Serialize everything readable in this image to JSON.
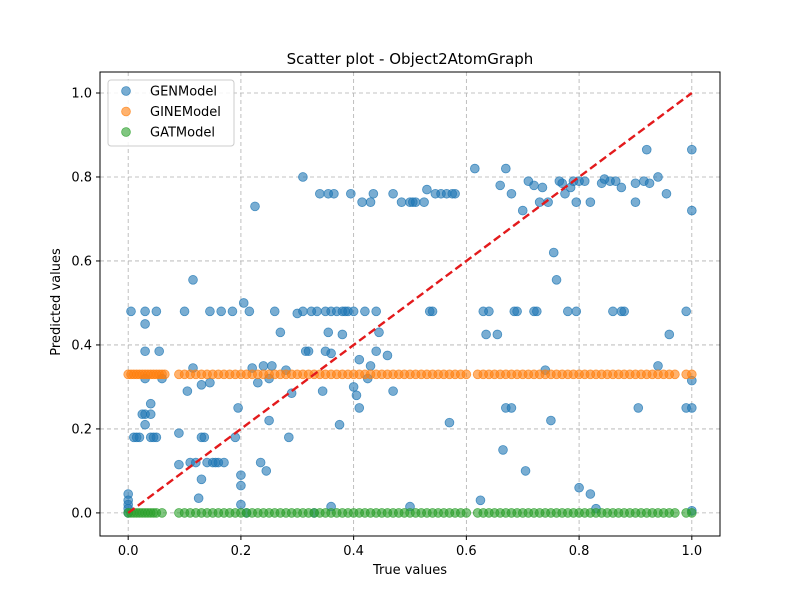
{
  "chart_data": {
    "type": "scatter",
    "title": "Scatter plot - Object2AtomGraph",
    "xlabel": "True values",
    "ylabel": "Predicted values",
    "xlim": [
      -0.05,
      1.05
    ],
    "ylim": [
      -0.055,
      1.05
    ],
    "xticks": [
      "0.0",
      "0.2",
      "0.4",
      "0.6",
      "0.8",
      "1.0"
    ],
    "yticks": [
      "0.0",
      "0.2",
      "0.4",
      "0.6",
      "0.8",
      "1.0"
    ],
    "grid": true,
    "legend_position": "top-left",
    "series": [
      {
        "name": "GENModel",
        "color": "#1f77b4",
        "points": [
          [
            0.0,
            0.0
          ],
          [
            0.0,
            0.01
          ],
          [
            0.0,
            0.02
          ],
          [
            0.0,
            0.03
          ],
          [
            0.0,
            0.045
          ],
          [
            0.005,
            0.48
          ],
          [
            0.01,
            0.18
          ],
          [
            0.015,
            0.18
          ],
          [
            0.02,
            0.18
          ],
          [
            0.025,
            0.235
          ],
          [
            0.03,
            0.21
          ],
          [
            0.03,
            0.235
          ],
          [
            0.03,
            0.32
          ],
          [
            0.03,
            0.385
          ],
          [
            0.03,
            0.45
          ],
          [
            0.03,
            0.48
          ],
          [
            0.04,
            0.235
          ],
          [
            0.04,
            0.26
          ],
          [
            0.04,
            0.18
          ],
          [
            0.045,
            0.18
          ],
          [
            0.05,
            0.18
          ],
          [
            0.05,
            0.48
          ],
          [
            0.055,
            0.385
          ],
          [
            0.06,
            0.32
          ],
          [
            0.09,
            0.19
          ],
          [
            0.09,
            0.115
          ],
          [
            0.1,
            0.48
          ],
          [
            0.105,
            0.29
          ],
          [
            0.11,
            0.12
          ],
          [
            0.115,
            0.555
          ],
          [
            0.115,
            0.345
          ],
          [
            0.12,
            0.12
          ],
          [
            0.125,
            0.035
          ],
          [
            0.13,
            0.08
          ],
          [
            0.13,
            0.18
          ],
          [
            0.13,
            0.305
          ],
          [
            0.135,
            0.18
          ],
          [
            0.14,
            0.12
          ],
          [
            0.145,
            0.31
          ],
          [
            0.145,
            0.48
          ],
          [
            0.15,
            0.12
          ],
          [
            0.155,
            0.12
          ],
          [
            0.16,
            0.12
          ],
          [
            0.165,
            0.48
          ],
          [
            0.17,
            0.12
          ],
          [
            0.185,
            0.48
          ],
          [
            0.19,
            0.18
          ],
          [
            0.195,
            0.25
          ],
          [
            0.2,
            0.09
          ],
          [
            0.2,
            0.065
          ],
          [
            0.2,
            0.02
          ],
          [
            0.205,
            0.5
          ],
          [
            0.21,
            0.0
          ],
          [
            0.215,
            0.48
          ],
          [
            0.22,
            0.345
          ],
          [
            0.225,
            0.73
          ],
          [
            0.23,
            0.31
          ],
          [
            0.235,
            0.12
          ],
          [
            0.24,
            0.35
          ],
          [
            0.245,
            0.1
          ],
          [
            0.25,
            0.22
          ],
          [
            0.25,
            0.32
          ],
          [
            0.255,
            0.35
          ],
          [
            0.26,
            0.48
          ],
          [
            0.27,
            0.43
          ],
          [
            0.28,
            0.34
          ],
          [
            0.285,
            0.18
          ],
          [
            0.29,
            0.285
          ],
          [
            0.3,
            0.475
          ],
          [
            0.31,
            0.8
          ],
          [
            0.31,
            0.48
          ],
          [
            0.315,
            0.385
          ],
          [
            0.32,
            0.385
          ],
          [
            0.325,
            0.48
          ],
          [
            0.33,
            0.0
          ],
          [
            0.335,
            0.48
          ],
          [
            0.34,
            0.76
          ],
          [
            0.345,
            0.29
          ],
          [
            0.35,
            0.385
          ],
          [
            0.35,
            0.48
          ],
          [
            0.355,
            0.43
          ],
          [
            0.355,
            0.76
          ],
          [
            0.36,
            0.48
          ],
          [
            0.36,
            0.38
          ],
          [
            0.36,
            0.015
          ],
          [
            0.365,
            0.76
          ],
          [
            0.37,
            0.48
          ],
          [
            0.375,
            0.21
          ],
          [
            0.38,
            0.48
          ],
          [
            0.38,
            0.425
          ],
          [
            0.385,
            0.48
          ],
          [
            0.39,
            0.48
          ],
          [
            0.395,
            0.76
          ],
          [
            0.4,
            0.48
          ],
          [
            0.4,
            0.3
          ],
          [
            0.405,
            0.28
          ],
          [
            0.41,
            0.365
          ],
          [
            0.41,
            0.25
          ],
          [
            0.415,
            0.74
          ],
          [
            0.42,
            0.48
          ],
          [
            0.425,
            0.32
          ],
          [
            0.43,
            0.74
          ],
          [
            0.43,
            0.35
          ],
          [
            0.435,
            0.76
          ],
          [
            0.44,
            0.48
          ],
          [
            0.44,
            0.385
          ],
          [
            0.445,
            0.43
          ],
          [
            0.46,
            0.375
          ],
          [
            0.47,
            0.29
          ],
          [
            0.47,
            0.76
          ],
          [
            0.485,
            0.74
          ],
          [
            0.5,
            0.74
          ],
          [
            0.5,
            0.015
          ],
          [
            0.505,
            0.74
          ],
          [
            0.51,
            0.74
          ],
          [
            0.525,
            0.74
          ],
          [
            0.53,
            0.77
          ],
          [
            0.535,
            0.48
          ],
          [
            0.54,
            0.48
          ],
          [
            0.545,
            0.76
          ],
          [
            0.555,
            0.76
          ],
          [
            0.565,
            0.76
          ],
          [
            0.57,
            0.215
          ],
          [
            0.575,
            0.76
          ],
          [
            0.58,
            0.76
          ],
          [
            0.615,
            0.82
          ],
          [
            0.625,
            0.03
          ],
          [
            0.63,
            0.48
          ],
          [
            0.635,
            0.425
          ],
          [
            0.64,
            0.48
          ],
          [
            0.655,
            0.425
          ],
          [
            0.66,
            0.78
          ],
          [
            0.665,
            0.15
          ],
          [
            0.67,
            0.25
          ],
          [
            0.67,
            0.82
          ],
          [
            0.68,
            0.25
          ],
          [
            0.68,
            0.76
          ],
          [
            0.685,
            0.48
          ],
          [
            0.69,
            0.48
          ],
          [
            0.7,
            0.72
          ],
          [
            0.705,
            0.1
          ],
          [
            0.71,
            0.79
          ],
          [
            0.72,
            0.78
          ],
          [
            0.72,
            0.48
          ],
          [
            0.725,
            0.48
          ],
          [
            0.73,
            0.74
          ],
          [
            0.735,
            0.775
          ],
          [
            0.74,
            0.34
          ],
          [
            0.745,
            0.74
          ],
          [
            0.75,
            0.22
          ],
          [
            0.755,
            0.62
          ],
          [
            0.76,
            0.555
          ],
          [
            0.765,
            0.79
          ],
          [
            0.77,
            0.785
          ],
          [
            0.775,
            0.76
          ],
          [
            0.78,
            0.48
          ],
          [
            0.785,
            0.775
          ],
          [
            0.79,
            0.79
          ],
          [
            0.795,
            0.48
          ],
          [
            0.795,
            0.74
          ],
          [
            0.8,
            0.06
          ],
          [
            0.8,
            0.79
          ],
          [
            0.81,
            0.79
          ],
          [
            0.82,
            0.74
          ],
          [
            0.82,
            0.045
          ],
          [
            0.83,
            0.01
          ],
          [
            0.84,
            0.785
          ],
          [
            0.845,
            0.795
          ],
          [
            0.855,
            0.79
          ],
          [
            0.86,
            0.48
          ],
          [
            0.865,
            0.79
          ],
          [
            0.875,
            0.775
          ],
          [
            0.875,
            0.48
          ],
          [
            0.88,
            0.48
          ],
          [
            0.9,
            0.74
          ],
          [
            0.9,
            0.785
          ],
          [
            0.905,
            0.25
          ],
          [
            0.915,
            0.79
          ],
          [
            0.92,
            0.865
          ],
          [
            0.925,
            0.785
          ],
          [
            0.94,
            0.35
          ],
          [
            0.94,
            0.8
          ],
          [
            0.955,
            0.76
          ],
          [
            0.96,
            0.425
          ],
          [
            0.99,
            0.25
          ],
          [
            0.99,
            0.48
          ],
          [
            1.0,
            0.865
          ],
          [
            1.0,
            0.72
          ],
          [
            1.0,
            0.25
          ],
          [
            1.0,
            0.315
          ],
          [
            1.0,
            0.005
          ]
        ]
      },
      {
        "name": "GINEModel",
        "color": "#ff7f0e",
        "y_constant": 0.33,
        "x": [
          0.0,
          0.005,
          0.01,
          0.015,
          0.02,
          0.025,
          0.03,
          0.035,
          0.04,
          0.045,
          0.05,
          0.055,
          0.06,
          0.065,
          0.09,
          0.1,
          0.11,
          0.12,
          0.13,
          0.14,
          0.15,
          0.16,
          0.17,
          0.18,
          0.19,
          0.2,
          0.21,
          0.22,
          0.23,
          0.24,
          0.25,
          0.26,
          0.27,
          0.28,
          0.29,
          0.3,
          0.31,
          0.32,
          0.33,
          0.34,
          0.35,
          0.36,
          0.37,
          0.38,
          0.39,
          0.4,
          0.41,
          0.42,
          0.43,
          0.44,
          0.45,
          0.46,
          0.47,
          0.48,
          0.49,
          0.5,
          0.51,
          0.52,
          0.53,
          0.54,
          0.55,
          0.56,
          0.57,
          0.58,
          0.59,
          0.6,
          0.62,
          0.63,
          0.64,
          0.65,
          0.66,
          0.67,
          0.68,
          0.69,
          0.7,
          0.71,
          0.72,
          0.73,
          0.74,
          0.75,
          0.76,
          0.77,
          0.78,
          0.79,
          0.8,
          0.81,
          0.82,
          0.83,
          0.84,
          0.85,
          0.86,
          0.87,
          0.88,
          0.89,
          0.9,
          0.91,
          0.92,
          0.93,
          0.94,
          0.95,
          0.96,
          0.97,
          0.99,
          1.0
        ]
      },
      {
        "name": "GATModel",
        "color": "#2ca02c",
        "y_constant": 0.0,
        "x": [
          0.0,
          0.005,
          0.01,
          0.015,
          0.02,
          0.025,
          0.03,
          0.035,
          0.04,
          0.045,
          0.05,
          0.06,
          0.09,
          0.1,
          0.11,
          0.12,
          0.13,
          0.14,
          0.15,
          0.16,
          0.17,
          0.18,
          0.19,
          0.2,
          0.21,
          0.22,
          0.23,
          0.24,
          0.25,
          0.26,
          0.27,
          0.28,
          0.29,
          0.3,
          0.31,
          0.32,
          0.33,
          0.34,
          0.35,
          0.36,
          0.37,
          0.38,
          0.39,
          0.4,
          0.41,
          0.42,
          0.43,
          0.44,
          0.45,
          0.46,
          0.47,
          0.48,
          0.49,
          0.5,
          0.51,
          0.52,
          0.53,
          0.54,
          0.55,
          0.56,
          0.57,
          0.58,
          0.59,
          0.6,
          0.62,
          0.63,
          0.64,
          0.65,
          0.66,
          0.67,
          0.68,
          0.69,
          0.7,
          0.71,
          0.72,
          0.73,
          0.74,
          0.75,
          0.76,
          0.77,
          0.78,
          0.79,
          0.8,
          0.81,
          0.82,
          0.83,
          0.84,
          0.85,
          0.86,
          0.87,
          0.88,
          0.89,
          0.9,
          0.91,
          0.92,
          0.93,
          0.94,
          0.95,
          0.96,
          0.97,
          0.99,
          1.0
        ]
      }
    ],
    "reference_line": {
      "from": [
        0,
        0
      ],
      "to": [
        1,
        1
      ],
      "color": "#e31a1c",
      "style": "dashed"
    }
  }
}
